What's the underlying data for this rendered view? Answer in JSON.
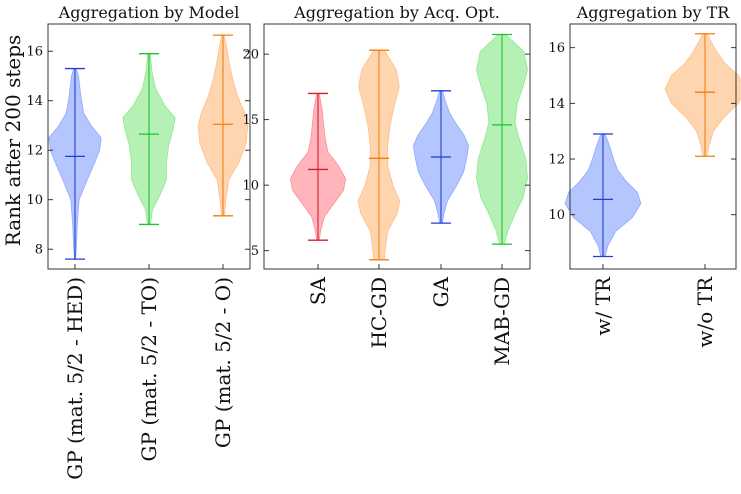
{
  "chart_data": [
    {
      "type": "violin",
      "title": "Aggregation by Model",
      "ylabel": "Rank after 200 steps",
      "ylim": [
        7.2,
        17.1
      ],
      "yticks": [
        8,
        10,
        12,
        14,
        16
      ],
      "categories": [
        "GP (mat. 5/2 - HED)",
        "GP (mat. 5/2 - TO)",
        "GP (mat. 5/2 - O)"
      ],
      "colors": [
        "#1f3fd6",
        "#1fbf2f",
        "#f07f0f"
      ],
      "fills": [
        "#8ea8ff",
        "#8de88e",
        "#ffbf86"
      ],
      "series": [
        {
          "min": 7.6,
          "median": 11.75,
          "max": 15.3,
          "profile": [
            [
              7.6,
              0.02
            ],
            [
              8.2,
              0.05
            ],
            [
              9.0,
              0.08
            ],
            [
              10.0,
              0.14
            ],
            [
              10.8,
              0.42
            ],
            [
              11.5,
              0.68
            ],
            [
              12.0,
              0.85
            ],
            [
              12.5,
              0.9
            ],
            [
              13.0,
              0.55
            ],
            [
              13.5,
              0.3
            ],
            [
              14.2,
              0.2
            ],
            [
              15.0,
              0.12
            ],
            [
              15.3,
              0.04
            ]
          ]
        },
        {
          "min": 9.0,
          "median": 12.65,
          "max": 15.9,
          "profile": [
            [
              9.0,
              0.05
            ],
            [
              9.6,
              0.12
            ],
            [
              10.2,
              0.38
            ],
            [
              10.8,
              0.6
            ],
            [
              11.5,
              0.6
            ],
            [
              12.2,
              0.68
            ],
            [
              12.8,
              0.82
            ],
            [
              13.3,
              0.9
            ],
            [
              13.8,
              0.55
            ],
            [
              14.5,
              0.22
            ],
            [
              15.2,
              0.1
            ],
            [
              15.9,
              0.04
            ]
          ]
        },
        {
          "min": 9.35,
          "median": 13.05,
          "max": 16.65,
          "profile": [
            [
              9.35,
              0.05
            ],
            [
              10.0,
              0.1
            ],
            [
              10.8,
              0.2
            ],
            [
              11.5,
              0.55
            ],
            [
              12.3,
              0.8
            ],
            [
              13.0,
              0.85
            ],
            [
              13.5,
              0.75
            ],
            [
              14.2,
              0.5
            ],
            [
              14.8,
              0.35
            ],
            [
              15.5,
              0.22
            ],
            [
              16.2,
              0.12
            ],
            [
              16.65,
              0.04
            ]
          ]
        }
      ]
    },
    {
      "type": "violin",
      "title": "Aggregation by Acq. Opt.",
      "ylim": [
        3.6,
        22.3
      ],
      "yticks": [
        5,
        10,
        15,
        20
      ],
      "categories": [
        "SA",
        "HC-GD",
        "GA",
        "MAB-GD"
      ],
      "colors": [
        "#d61f2a",
        "#f07f0f",
        "#1f3fd6",
        "#1fbf2f"
      ],
      "fills": [
        "#ff8e96",
        "#ffbf86",
        "#8ea8ff",
        "#8de88e"
      ],
      "series": [
        {
          "min": 5.8,
          "median": 11.2,
          "max": 17.0,
          "profile": [
            [
              5.8,
              0.04
            ],
            [
              6.6,
              0.1
            ],
            [
              7.6,
              0.22
            ],
            [
              8.6,
              0.55
            ],
            [
              9.6,
              0.88
            ],
            [
              10.5,
              0.95
            ],
            [
              11.5,
              0.7
            ],
            [
              12.5,
              0.35
            ],
            [
              13.5,
              0.25
            ],
            [
              14.5,
              0.2
            ],
            [
              15.8,
              0.14
            ],
            [
              17.0,
              0.04
            ]
          ]
        },
        {
          "min": 4.3,
          "median": 12.05,
          "max": 20.3,
          "profile": [
            [
              4.3,
              0.18
            ],
            [
              5.2,
              0.22
            ],
            [
              6.5,
              0.3
            ],
            [
              7.8,
              0.62
            ],
            [
              8.8,
              0.72
            ],
            [
              10.0,
              0.48
            ],
            [
              11.5,
              0.3
            ],
            [
              13.0,
              0.3
            ],
            [
              14.5,
              0.38
            ],
            [
              16.0,
              0.52
            ],
            [
              17.5,
              0.7
            ],
            [
              18.8,
              0.6
            ],
            [
              20.3,
              0.18
            ]
          ]
        },
        {
          "min": 7.1,
          "median": 12.15,
          "max": 17.2,
          "profile": [
            [
              7.1,
              0.05
            ],
            [
              7.8,
              0.1
            ],
            [
              8.8,
              0.22
            ],
            [
              10.0,
              0.55
            ],
            [
              11.0,
              0.78
            ],
            [
              12.0,
              0.88
            ],
            [
              13.0,
              0.95
            ],
            [
              13.8,
              0.8
            ],
            [
              14.6,
              0.55
            ],
            [
              15.5,
              0.3
            ],
            [
              16.4,
              0.15
            ],
            [
              17.2,
              0.05
            ]
          ]
        },
        {
          "min": 5.5,
          "median": 14.6,
          "max": 21.5,
          "profile": [
            [
              5.5,
              0.08
            ],
            [
              6.5,
              0.2
            ],
            [
              7.8,
              0.45
            ],
            [
              9.0,
              0.72
            ],
            [
              10.5,
              0.88
            ],
            [
              12.0,
              0.82
            ],
            [
              13.5,
              0.6
            ],
            [
              14.8,
              0.45
            ],
            [
              16.2,
              0.52
            ],
            [
              17.5,
              0.72
            ],
            [
              18.8,
              0.88
            ],
            [
              20.2,
              0.75
            ],
            [
              21.5,
              0.12
            ]
          ]
        }
      ]
    },
    {
      "type": "violin",
      "title": "Aggregation by TR",
      "ylim": [
        8.05,
        16.85
      ],
      "yticks": [
        10,
        12,
        14,
        16
      ],
      "categories": [
        "w/ TR",
        "w/o TR"
      ],
      "colors": [
        "#1f3fd6",
        "#f07f0f"
      ],
      "fills": [
        "#8ea8ff",
        "#ffbf86"
      ],
      "series": [
        {
          "min": 8.5,
          "median": 10.55,
          "max": 12.9,
          "profile": [
            [
              8.5,
              0.05
            ],
            [
              8.9,
              0.12
            ],
            [
              9.4,
              0.3
            ],
            [
              9.9,
              0.7
            ],
            [
              10.4,
              0.9
            ],
            [
              10.8,
              0.82
            ],
            [
              11.2,
              0.55
            ],
            [
              11.6,
              0.35
            ],
            [
              12.0,
              0.25
            ],
            [
              12.5,
              0.15
            ],
            [
              12.9,
              0.05
            ]
          ]
        },
        {
          "min": 12.1,
          "median": 14.4,
          "max": 16.5,
          "profile": [
            [
              12.1,
              0.05
            ],
            [
              12.5,
              0.1
            ],
            [
              13.0,
              0.2
            ],
            [
              13.5,
              0.45
            ],
            [
              14.0,
              0.8
            ],
            [
              14.5,
              0.95
            ],
            [
              15.0,
              0.8
            ],
            [
              15.4,
              0.5
            ],
            [
              15.8,
              0.3
            ],
            [
              16.2,
              0.15
            ],
            [
              16.5,
              0.05
            ]
          ]
        }
      ]
    }
  ]
}
